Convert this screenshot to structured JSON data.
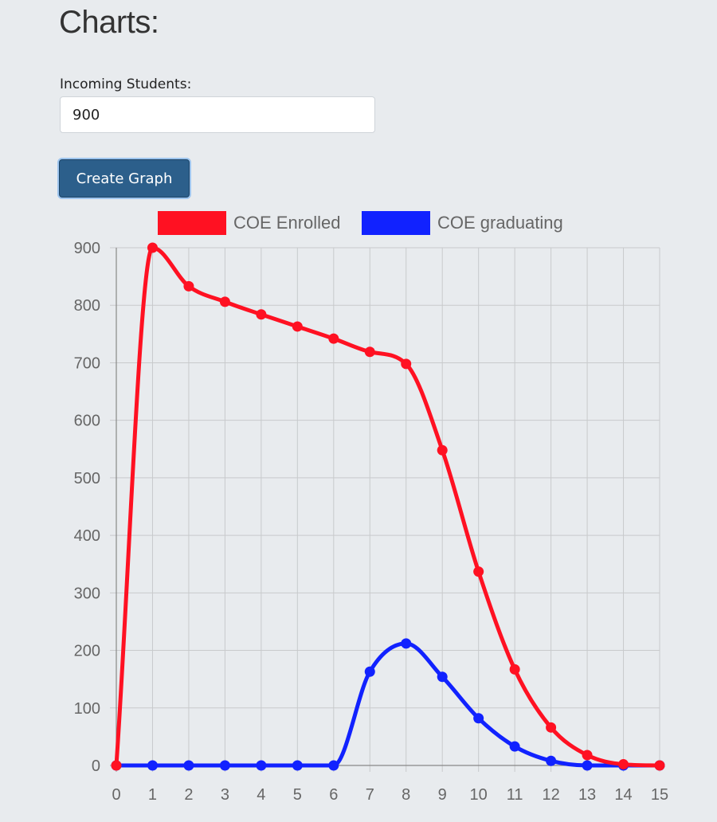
{
  "page": {
    "title": "Charts:"
  },
  "form": {
    "label": "Incoming Students:",
    "value": "900",
    "button_label": "Create Graph"
  },
  "chart_data": {
    "type": "line",
    "x": [
      0,
      1,
      2,
      3,
      4,
      5,
      6,
      7,
      8,
      9,
      10,
      11,
      12,
      13,
      14,
      15
    ],
    "series": [
      {
        "name": "COE Enrolled",
        "color": "#ff1122",
        "values": [
          0,
          900,
          833,
          806,
          784,
          763,
          742,
          719,
          698,
          548,
          337,
          167,
          66,
          18,
          2,
          0
        ]
      },
      {
        "name": "COE graduating",
        "color": "#1122ff",
        "values": [
          0,
          0,
          0,
          0,
          0,
          0,
          0,
          163,
          212,
          154,
          82,
          33,
          8,
          0,
          0,
          0
        ]
      }
    ],
    "xticks": [
      "0",
      "1",
      "2",
      "3",
      "4",
      "5",
      "6",
      "7",
      "8",
      "9",
      "10",
      "11",
      "12",
      "13",
      "14",
      "15"
    ],
    "yticks": [
      "0",
      "100",
      "200",
      "300",
      "400",
      "500",
      "600",
      "700",
      "800",
      "900"
    ],
    "xlim": [
      0,
      15
    ],
    "ylim": [
      0,
      900
    ],
    "grid": true,
    "legend_position": "top-center",
    "curve": "smooth"
  }
}
